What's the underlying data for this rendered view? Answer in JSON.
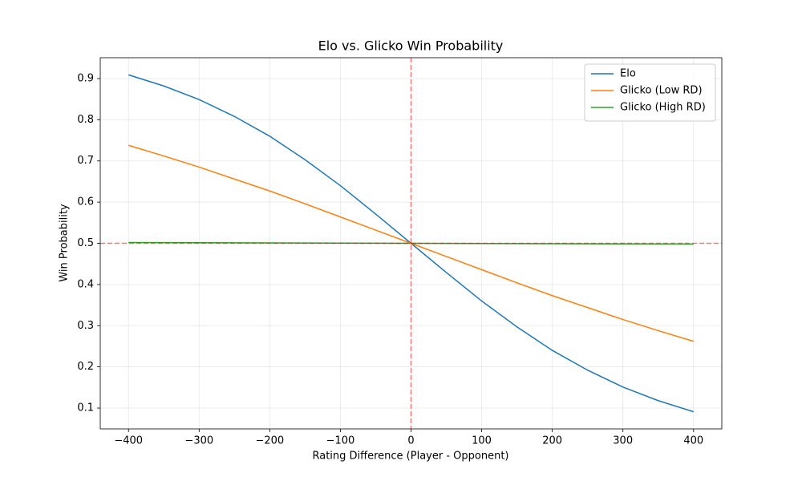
{
  "chart_data": {
    "type": "line",
    "title": "Elo vs. Glicko Win Probability",
    "x_label": "Rating Difference (Player - Opponent)",
    "y_label": "Win Probability",
    "x": [
      -400,
      -350,
      -300,
      -250,
      -200,
      -150,
      -100,
      -50,
      0,
      50,
      100,
      150,
      200,
      250,
      300,
      350,
      400
    ],
    "series": [
      {
        "name": "Elo",
        "color": "#1f77b4",
        "values": [
          0.909,
          0.882,
          0.849,
          0.808,
          0.76,
          0.703,
          0.64,
          0.571,
          0.5,
          0.429,
          0.36,
          0.297,
          0.24,
          0.192,
          0.151,
          0.118,
          0.091
        ]
      },
      {
        "name": "Glicko (Low RD)",
        "color": "#ff7f0e",
        "values": [
          0.738,
          0.712,
          0.685,
          0.656,
          0.627,
          0.596,
          0.564,
          0.532,
          0.5,
          0.468,
          0.436,
          0.404,
          0.373,
          0.344,
          0.315,
          0.288,
          0.262
        ]
      },
      {
        "name": "Glicko (High RD)",
        "color": "#2ca02c",
        "values": [
          0.502,
          0.50175,
          0.5015,
          0.50125,
          0.501,
          0.50075,
          0.5005,
          0.50025,
          0.5,
          0.49975,
          0.4995,
          0.49925,
          0.499,
          0.49875,
          0.4985,
          0.49825,
          0.498
        ]
      }
    ],
    "hline": 0.5,
    "vline": 0,
    "ref_color": "#ff0000",
    "xlim": [
      -440,
      440
    ],
    "ylim": [
      0.0494,
      0.9506
    ],
    "xticks": [
      {
        "value": -400,
        "label": "−400"
      },
      {
        "value": -300,
        "label": "−300"
      },
      {
        "value": -200,
        "label": "−200"
      },
      {
        "value": -100,
        "label": "−100"
      },
      0,
      100,
      200,
      300,
      400
    ],
    "yticks": [
      0.1,
      0.2,
      0.3,
      0.4,
      0.5,
      0.6,
      0.7,
      0.8,
      0.9
    ],
    "grid": true,
    "legend": "upper-right"
  }
}
